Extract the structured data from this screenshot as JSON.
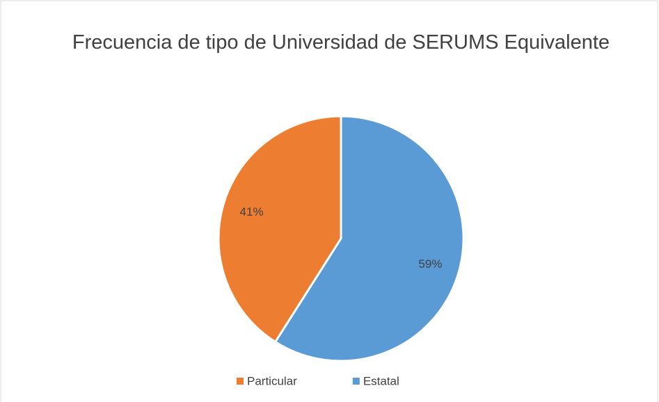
{
  "chart_data": {
    "type": "pie",
    "title": "Frecuencia de tipo de Universidad de SERUMS Equivalente",
    "categories": [
      "Particular",
      "Estatal"
    ],
    "values": [
      41,
      59
    ],
    "value_labels": [
      "41%",
      "59%"
    ],
    "colors": [
      "#ed7d31",
      "#5b9bd5"
    ],
    "legend": "bottom"
  }
}
